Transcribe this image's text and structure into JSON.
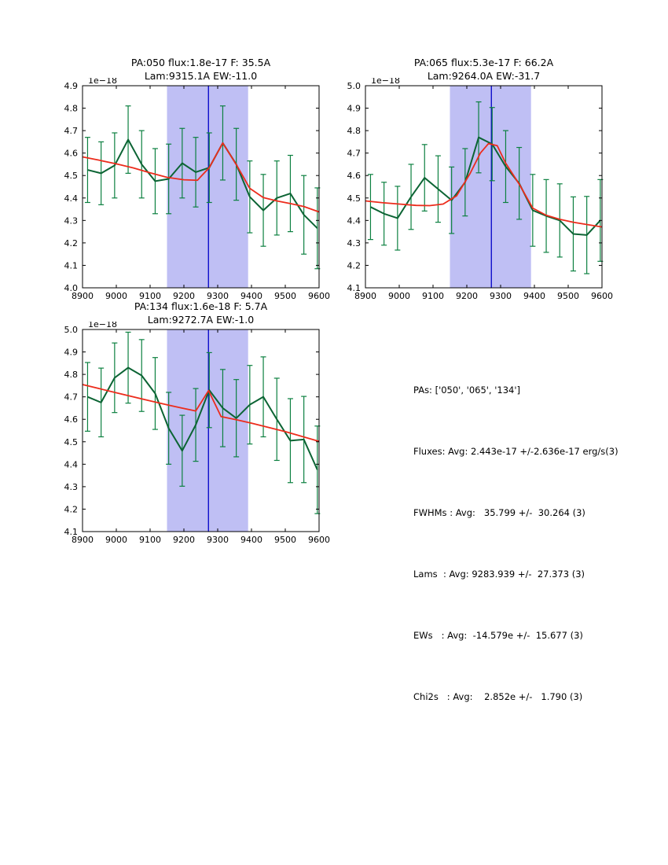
{
  "style": {
    "background": "#ffffff",
    "spectrum_color": "#0c6434",
    "error_color": "#0c8040",
    "fit_color": "#ec2c1c",
    "center_line_color": "#0000c8",
    "band_color": "#bfbff4",
    "axis_color": "#000000",
    "text_color": "#000000"
  },
  "stats_panel": {
    "lines": [
      "PAs: ['050', '065', '134']",
      "Fluxes: Avg: 2.443e-17 +/-2.636e-17 erg/s(3)",
      "FWHMs : Avg:   35.799 +/-  30.264 (3)",
      "Lams  : Avg: 9283.939 +/-  27.373 (3)",
      "EWs   : Avg:  -14.579e +/-  15.677 (3)",
      "Chi2s   : Avg:    2.852e +/-   1.790 (3)"
    ]
  },
  "chart_data": [
    {
      "id": "pa050",
      "type": "line",
      "title_line1": "PA:050 flux:1.8e-17 F: 35.5A",
      "title_line2": "Lam:9315.1A EW:-11.0",
      "xlim": [
        8900,
        9600
      ],
      "ylim": [
        4.0,
        4.9
      ],
      "x_ticks": [
        8900,
        9000,
        9100,
        9200,
        9300,
        9400,
        9500,
        9600
      ],
      "y_ticks": [
        4.0,
        4.1,
        4.2,
        4.3,
        4.4,
        4.5,
        4.6,
        4.7,
        4.8,
        4.9
      ],
      "y_offset_label": "1e−18",
      "band": [
        9150,
        9390
      ],
      "center_line_x": 9272.7,
      "series": {
        "name": "spectrum",
        "x": [
          8915,
          8955,
          8995,
          9035,
          9075,
          9115,
          9155,
          9195,
          9235,
          9275,
          9315,
          9355,
          9395,
          9435,
          9475,
          9515,
          9555,
          9595
        ],
        "y": [
          4.525,
          4.51,
          4.545,
          4.66,
          4.55,
          4.475,
          4.485,
          4.555,
          4.515,
          4.535,
          4.645,
          4.55,
          4.405,
          4.345,
          4.4,
          4.42,
          4.325,
          4.265
        ],
        "yerr": [
          0.145,
          0.14,
          0.145,
          0.15,
          0.15,
          0.145,
          0.155,
          0.155,
          0.155,
          0.155,
          0.165,
          0.16,
          0.16,
          0.16,
          0.165,
          0.17,
          0.175,
          0.18
        ]
      },
      "fit": {
        "name": "gaussian-plus-continuum-fit",
        "x": [
          8900,
          8950,
          9000,
          9050,
          9100,
          9150,
          9200,
          9240,
          9275,
          9315,
          9355,
          9395,
          9435,
          9475,
          9515,
          9555,
          9600
        ],
        "y": [
          4.583,
          4.568,
          4.552,
          4.534,
          4.512,
          4.492,
          4.481,
          4.479,
          4.535,
          4.645,
          4.549,
          4.443,
          4.402,
          4.387,
          4.375,
          4.362,
          4.338
        ]
      }
    },
    {
      "id": "pa065",
      "type": "line",
      "title_line1": "PA:065 flux:5.3e-17 F: 66.2A",
      "title_line2": "Lam:9264.0A EW:-31.7",
      "xlim": [
        8900,
        9600
      ],
      "ylim": [
        4.1,
        5.0
      ],
      "x_ticks": [
        8900,
        9000,
        9100,
        9200,
        9300,
        9400,
        9500,
        9600
      ],
      "y_ticks": [
        4.1,
        4.2,
        4.3,
        4.4,
        4.5,
        4.6,
        4.7,
        4.8,
        4.9,
        5.0
      ],
      "y_offset_label": "1e−18",
      "band": [
        9150,
        9390
      ],
      "center_line_x": 9272.7,
      "series": {
        "name": "spectrum",
        "x": [
          8915,
          8955,
          8995,
          9035,
          9075,
          9115,
          9155,
          9195,
          9235,
          9275,
          9315,
          9355,
          9395,
          9435,
          9475,
          9515,
          9555,
          9595
        ],
        "y": [
          4.46,
          4.43,
          4.41,
          4.505,
          4.59,
          4.54,
          4.49,
          4.57,
          4.77,
          4.74,
          4.64,
          4.565,
          4.445,
          4.42,
          4.4,
          4.34,
          4.335,
          4.4
        ],
        "yerr": [
          0.145,
          0.14,
          0.142,
          0.145,
          0.148,
          0.148,
          0.148,
          0.15,
          0.158,
          0.163,
          0.16,
          0.16,
          0.16,
          0.162,
          0.163,
          0.165,
          0.172,
          0.182
        ]
      },
      "fit": {
        "name": "gaussian-plus-continuum-fit",
        "x": [
          8900,
          8950,
          9000,
          9050,
          9090,
          9130,
          9170,
          9210,
          9240,
          9264,
          9290,
          9315,
          9355,
          9395,
          9435,
          9475,
          9515,
          9555,
          9600
        ],
        "y": [
          4.487,
          4.479,
          4.473,
          4.467,
          4.466,
          4.473,
          4.51,
          4.61,
          4.7,
          4.742,
          4.733,
          4.655,
          4.562,
          4.455,
          4.423,
          4.405,
          4.392,
          4.382,
          4.371
        ]
      }
    },
    {
      "id": "pa134",
      "type": "line",
      "title_line1": "PA:134 flux:1.6e-18 F: 5.7A",
      "title_line2": "Lam:9272.7A EW:-1.0",
      "xlim": [
        8900,
        9600
      ],
      "ylim": [
        4.1,
        5.0
      ],
      "x_ticks": [
        8900,
        9000,
        9100,
        9200,
        9300,
        9400,
        9500,
        9600
      ],
      "y_ticks": [
        4.1,
        4.2,
        4.3,
        4.4,
        4.5,
        4.6,
        4.7,
        4.8,
        4.9,
        5.0
      ],
      "y_offset_label": "1e−18",
      "band": [
        9150,
        9390
      ],
      "center_line_x": 9272.7,
      "series": {
        "name": "spectrum",
        "x": [
          8915,
          8955,
          8995,
          9035,
          9075,
          9115,
          9155,
          9195,
          9235,
          9275,
          9315,
          9355,
          9395,
          9435,
          9475,
          9515,
          9555,
          9595
        ],
        "y": [
          4.7,
          4.675,
          4.785,
          4.83,
          4.795,
          4.715,
          4.56,
          4.46,
          4.575,
          4.73,
          4.65,
          4.605,
          4.665,
          4.7,
          4.6,
          4.505,
          4.51,
          4.375
        ],
        "yerr": [
          0.153,
          0.153,
          0.155,
          0.158,
          0.16,
          0.16,
          0.16,
          0.158,
          0.162,
          0.167,
          0.172,
          0.172,
          0.175,
          0.178,
          0.183,
          0.187,
          0.192,
          0.195
        ]
      },
      "fit": {
        "name": "gaussian-plus-continuum-fit",
        "x": [
          8900,
          9000,
          9100,
          9155,
          9195,
          9235,
          9273,
          9310,
          9355,
          9400,
          9500,
          9600
        ],
        "y": [
          4.755,
          4.718,
          4.682,
          4.663,
          4.65,
          4.637,
          4.728,
          4.612,
          4.598,
          4.583,
          4.545,
          4.502
        ]
      }
    }
  ]
}
